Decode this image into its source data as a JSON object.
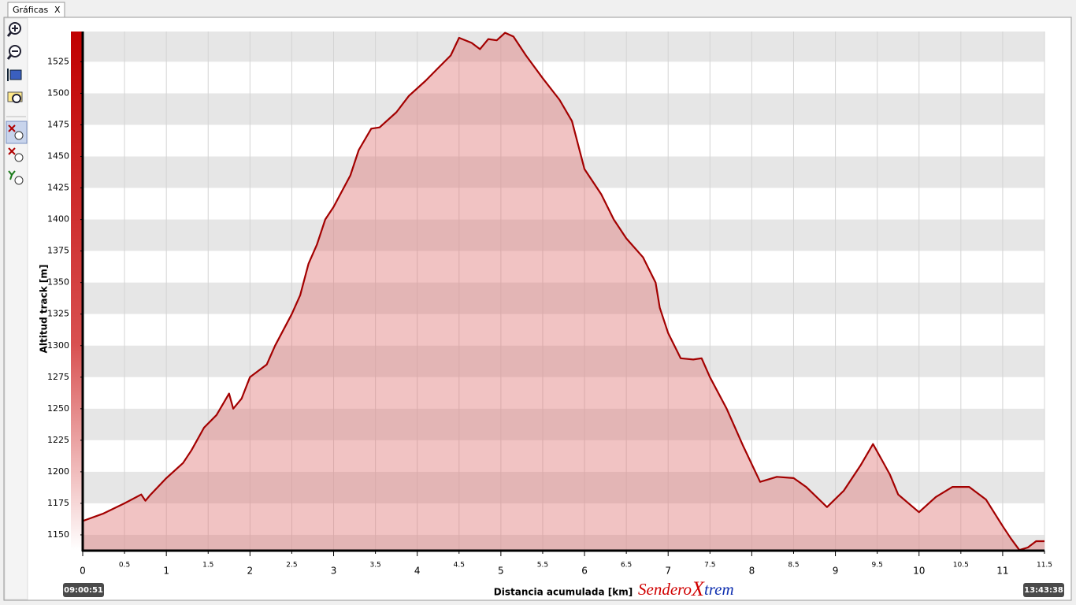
{
  "ui": {
    "tab": {
      "title": "Gráficas",
      "close": "X"
    }
  },
  "chart_data": {
    "type": "area",
    "ylabel": "Altitud track [m]",
    "xlabel": "Distancia acumulada [km]",
    "color": "#a30000",
    "fill": "#e07a7a",
    "grid": true,
    "xlim": [
      0,
      11.5
    ],
    "ylim": [
      1137.5,
      1549
    ],
    "xticks": [
      0,
      0.5,
      1,
      1.5,
      2,
      2.5,
      3,
      3.5,
      4,
      4.5,
      5,
      5.5,
      6,
      6.5,
      7,
      7.5,
      8,
      8.5,
      9,
      9.5,
      10,
      10.5,
      11,
      11.5
    ],
    "yticks": [
      1150,
      1175,
      1200,
      1225,
      1250,
      1275,
      1300,
      1325,
      1350,
      1375,
      1400,
      1425,
      1450,
      1475,
      1500,
      1525
    ],
    "x": [
      0,
      0.25,
      0.5,
      0.7,
      0.75,
      0.8,
      1.0,
      1.2,
      1.3,
      1.45,
      1.6,
      1.75,
      1.8,
      1.9,
      2.0,
      2.2,
      2.3,
      2.5,
      2.6,
      2.7,
      2.8,
      2.9,
      3.0,
      3.2,
      3.3,
      3.45,
      3.55,
      3.75,
      3.9,
      4.1,
      4.25,
      4.4,
      4.5,
      4.65,
      4.75,
      4.85,
      4.95,
      5.05,
      5.15,
      5.3,
      5.5,
      5.7,
      5.85,
      6.0,
      6.2,
      6.35,
      6.5,
      6.7,
      6.85,
      6.9,
      7.0,
      7.15,
      7.3,
      7.4,
      7.5,
      7.7,
      7.9,
      8.1,
      8.3,
      8.5,
      8.65,
      8.9,
      9.1,
      9.3,
      9.45,
      9.55,
      9.65,
      9.75,
      10.0,
      10.2,
      10.4,
      10.6,
      10.8,
      11.0,
      11.1,
      11.2,
      11.3,
      11.4,
      11.5
    ],
    "values": [
      1161,
      1167,
      1175,
      1182,
      1177,
      1181,
      1195,
      1207,
      1217,
      1235,
      1245,
      1262,
      1250,
      1258,
      1275,
      1285,
      1300,
      1325,
      1340,
      1365,
      1380,
      1400,
      1410,
      1435,
      1455,
      1472,
      1473,
      1485,
      1498,
      1510,
      1520,
      1530,
      1544,
      1540,
      1535,
      1543,
      1542,
      1548,
      1545,
      1530,
      1512,
      1495,
      1478,
      1440,
      1420,
      1400,
      1385,
      1370,
      1350,
      1330,
      1310,
      1290,
      1289,
      1290,
      1275,
      1250,
      1220,
      1192,
      1196,
      1195,
      1188,
      1172,
      1185,
      1205,
      1222,
      1210,
      1198,
      1182,
      1168,
      1180,
      1188,
      1188,
      1178,
      1157,
      1147,
      1138,
      1140,
      1145,
      1145
    ]
  },
  "footer": {
    "start_time": "09:00:51",
    "end_time": "13:43:38",
    "logo": [
      "Sendero",
      "X",
      "trem"
    ]
  }
}
